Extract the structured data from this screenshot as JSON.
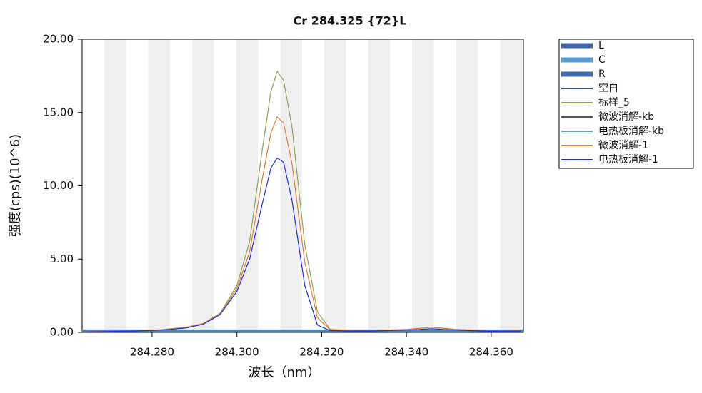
{
  "chart_data": {
    "type": "line",
    "title": "Cr 284.325 {72}L",
    "x_label": "波长（nm）",
    "y_label": "强度(cps)(10^6)",
    "xlim": [
      284.2635,
      284.3676
    ],
    "ylim": [
      0,
      20
    ],
    "xticks": [
      {
        "value": 284.28,
        "label": "284.280"
      },
      {
        "value": 284.3,
        "label": "284.300"
      },
      {
        "value": 284.32,
        "label": "284.320"
      },
      {
        "value": 284.34,
        "label": "284.340"
      },
      {
        "value": 284.36,
        "label": "284.360"
      }
    ],
    "yticks": [
      {
        "value": 0,
        "label": "0.00"
      },
      {
        "value": 5,
        "label": "5.00"
      },
      {
        "value": 10,
        "label": "10.00"
      },
      {
        "value": 15,
        "label": "15.00"
      },
      {
        "value": 20,
        "label": "20.00"
      }
    ],
    "x": [
      284.264,
      284.27,
      284.276,
      284.282,
      284.288,
      284.292,
      284.296,
      284.3,
      284.303,
      284.306,
      284.308,
      284.3095,
      284.311,
      284.313,
      284.316,
      284.319,
      284.322,
      284.326,
      284.332,
      284.34,
      284.346,
      284.352,
      284.36,
      284.367
    ],
    "series": [
      {
        "name": "L",
        "color": "#3c64a8",
        "x": [
          284.2635,
          284.3676
        ],
        "values": [
          0.1,
          0.1
        ]
      },
      {
        "name": "C",
        "color": "#5b9bd5",
        "x": [
          284.2635,
          284.3676
        ],
        "values": [
          0.15,
          0.15
        ]
      },
      {
        "name": "R",
        "color": "#4068b0",
        "x": [
          284.2635,
          284.3676
        ],
        "values": [
          0.1,
          0.1
        ]
      },
      {
        "name": "空白",
        "color": "#2f5597",
        "x": [
          284.2635,
          284.3676
        ],
        "values": [
          0.05,
          0.05
        ]
      },
      {
        "name": "标样_5",
        "color": "#8aa55a",
        "values": [
          0.05,
          0.08,
          0.12,
          0.18,
          0.35,
          0.6,
          1.3,
          3.2,
          6.2,
          12.5,
          16.4,
          17.8,
          17.2,
          14.0,
          6.0,
          1.4,
          0.2,
          0.15,
          0.12,
          0.2,
          0.35,
          0.2,
          0.1,
          0.15
        ]
      },
      {
        "name": "微波消解-kb",
        "color": "#505a6a",
        "x": [
          284.2635,
          284.3676
        ],
        "values": [
          0.12,
          0.12
        ]
      },
      {
        "name": "电热板消解-kb",
        "color": "#5aa8a8",
        "x": [
          284.2635,
          284.3676
        ],
        "values": [
          0.1,
          0.1
        ]
      },
      {
        "name": "微波消解-1",
        "color": "#e07b39",
        "values": [
          0.05,
          0.08,
          0.12,
          0.18,
          0.35,
          0.6,
          1.25,
          3.0,
          5.5,
          10.5,
          13.6,
          14.7,
          14.3,
          11.5,
          4.8,
          1.0,
          0.18,
          0.15,
          0.12,
          0.2,
          0.35,
          0.2,
          0.1,
          0.15
        ]
      },
      {
        "name": "电热板消解-1",
        "color": "#1f2ee0",
        "values": [
          0.04,
          0.06,
          0.1,
          0.15,
          0.3,
          0.55,
          1.2,
          2.8,
          5.0,
          8.8,
          11.2,
          11.9,
          11.6,
          9.0,
          3.2,
          0.5,
          0.12,
          0.1,
          0.1,
          0.15,
          0.25,
          0.15,
          0.08,
          0.1
        ]
      }
    ]
  }
}
